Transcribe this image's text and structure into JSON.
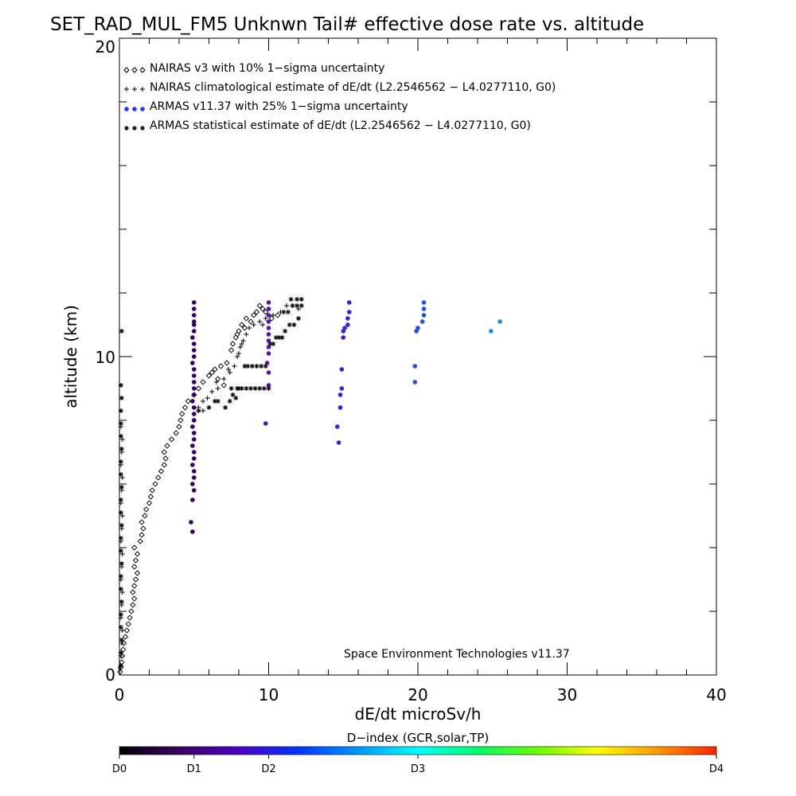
{
  "chart_data": {
    "type": "scatter",
    "title": "SET_RAD_MUL_FM5 Unknwn Tail#  effective dose rate vs. altitude",
    "xlabel": "dE/dt microSv/h",
    "ylabel": "altitude (km)",
    "xlim": [
      0,
      40
    ],
    "ylim": [
      0,
      20
    ],
    "x_ticks": [
      "0",
      "10",
      "20",
      "30",
      "40"
    ],
    "y_ticks": [
      "0",
      "10",
      "20"
    ],
    "legend_position": "top-left",
    "annotation": "Space Environment Technologies v11.37",
    "colorbar": {
      "title": "D−index (GCR,solar,TP)",
      "labels": [
        "D0",
        "D1",
        "D2",
        "D3",
        "D4"
      ],
      "label_positions": [
        0,
        0.125,
        0.25,
        0.5,
        1.0
      ],
      "colors": [
        "#000000",
        "#3a0060",
        "#4b00c8",
        "#0033ff",
        "#0099ff",
        "#00ffff",
        "#00ff66",
        "#66ff00",
        "#ffff00",
        "#ff9900",
        "#ff2200"
      ]
    },
    "series": [
      {
        "name": "NAIRAS v3 with 10% 1−sigma uncertainty",
        "marker": "diamond",
        "color": "#000000",
        "points": [
          [
            0.05,
            0.1
          ],
          [
            0.1,
            0.25
          ],
          [
            0.15,
            0.4
          ],
          [
            0.2,
            0.6
          ],
          [
            0.25,
            0.8
          ],
          [
            0.3,
            1.0
          ],
          [
            0.4,
            1.2
          ],
          [
            0.5,
            1.4
          ],
          [
            0.6,
            1.6
          ],
          [
            0.7,
            1.8
          ],
          [
            0.8,
            2.0
          ],
          [
            0.9,
            2.2
          ],
          [
            1.0,
            2.4
          ],
          [
            0.9,
            2.6
          ],
          [
            1.0,
            2.8
          ],
          [
            1.1,
            3.0
          ],
          [
            1.2,
            3.2
          ],
          [
            1.0,
            3.4
          ],
          [
            1.1,
            3.6
          ],
          [
            1.2,
            3.8
          ],
          [
            1.0,
            4.0
          ],
          [
            1.4,
            4.2
          ],
          [
            1.5,
            4.4
          ],
          [
            1.6,
            4.6
          ],
          [
            1.5,
            4.8
          ],
          [
            1.7,
            5.0
          ],
          [
            1.8,
            5.2
          ],
          [
            2.0,
            5.4
          ],
          [
            2.1,
            5.6
          ],
          [
            2.2,
            5.8
          ],
          [
            2.4,
            6.0
          ],
          [
            2.6,
            6.2
          ],
          [
            2.8,
            6.4
          ],
          [
            3.0,
            6.6
          ],
          [
            3.1,
            6.8
          ],
          [
            3.0,
            7.0
          ],
          [
            3.2,
            7.2
          ],
          [
            3.5,
            7.4
          ],
          [
            3.8,
            7.6
          ],
          [
            4.0,
            7.8
          ],
          [
            4.1,
            8.0
          ],
          [
            4.2,
            8.2
          ],
          [
            4.4,
            8.4
          ],
          [
            4.6,
            8.6
          ],
          [
            5.0,
            8.8
          ],
          [
            5.3,
            9.0
          ],
          [
            5.6,
            9.2
          ],
          [
            6.0,
            9.4
          ],
          [
            6.4,
            9.6
          ],
          [
            6.8,
            9.7
          ],
          [
            6.2,
            9.5
          ],
          [
            6.6,
            9.3
          ],
          [
            7.0,
            9.1
          ],
          [
            7.2,
            9.8
          ],
          [
            7.5,
            10.2
          ],
          [
            7.6,
            10.4
          ],
          [
            7.8,
            10.6
          ],
          [
            8.0,
            10.8
          ],
          [
            8.2,
            11.0
          ],
          [
            8.5,
            11.2
          ],
          [
            8.8,
            11.1
          ],
          [
            9.0,
            11.3
          ],
          [
            9.2,
            11.4
          ],
          [
            9.4,
            11.6
          ],
          [
            9.6,
            11.5
          ],
          [
            9.8,
            11.4
          ],
          [
            10.2,
            11.2
          ],
          [
            10.6,
            11.3
          ],
          [
            8.4,
            10.9
          ],
          [
            7.9,
            10.7
          ]
        ]
      },
      {
        "name": "NAIRAS climatological estimate of dE/dt (L2.2546562 − L4.0277110, G0)",
        "marker": "plus",
        "color": "#000000",
        "points": [
          [
            0.05,
            0.2
          ],
          [
            0.1,
            0.6
          ],
          [
            0.15,
            1.0
          ],
          [
            0.2,
            1.4
          ],
          [
            0.1,
            1.8
          ],
          [
            0.15,
            2.2
          ],
          [
            0.2,
            2.6
          ],
          [
            0.1,
            3.0
          ],
          [
            0.15,
            3.4
          ],
          [
            0.2,
            3.8
          ],
          [
            0.1,
            4.2
          ],
          [
            0.15,
            4.6
          ],
          [
            0.2,
            5.0
          ],
          [
            0.1,
            5.4
          ],
          [
            0.15,
            5.8
          ],
          [
            0.2,
            6.2
          ],
          [
            0.1,
            6.6
          ],
          [
            0.15,
            7.0
          ],
          [
            0.2,
            7.4
          ],
          [
            0.1,
            7.8
          ],
          [
            5.0,
            8.0
          ],
          [
            5.3,
            8.4
          ],
          [
            5.6,
            8.6
          ],
          [
            5.9,
            8.7
          ],
          [
            6.2,
            8.9
          ],
          [
            6.6,
            9.0
          ],
          [
            7.0,
            9.3
          ],
          [
            7.4,
            9.5
          ],
          [
            7.7,
            9.7
          ],
          [
            7.9,
            10.0
          ],
          [
            8.1,
            10.3
          ],
          [
            8.3,
            10.5
          ],
          [
            8.5,
            10.7
          ],
          [
            8.7,
            10.9
          ],
          [
            9.0,
            11.0
          ],
          [
            9.4,
            11.1
          ],
          [
            9.8,
            11.2
          ],
          [
            10.3,
            11.3
          ],
          [
            10.8,
            11.4
          ],
          [
            11.2,
            11.6
          ],
          [
            11.6,
            11.6
          ],
          [
            12.0,
            11.5
          ],
          [
            5.6,
            8.3
          ],
          [
            6.5,
            9.2
          ],
          [
            7.3,
            9.6
          ],
          [
            8.0,
            10.1
          ],
          [
            8.2,
            10.4
          ],
          [
            9.6,
            11.0
          ]
        ]
      },
      {
        "name": "ARMAS v11.37 with 25% 1−sigma uncertainty",
        "marker": "dot",
        "color": "#1e3cff",
        "points": [
          [
            4.9,
            4.5
          ],
          [
            4.8,
            4.8
          ],
          [
            4.9,
            5.5
          ],
          [
            5.0,
            5.8
          ],
          [
            4.9,
            6.0
          ],
          [
            5.0,
            6.2
          ],
          [
            5.0,
            6.4
          ],
          [
            4.9,
            6.6
          ],
          [
            5.0,
            6.8
          ],
          [
            5.0,
            7.0
          ],
          [
            4.9,
            7.2
          ],
          [
            5.0,
            7.4
          ],
          [
            5.0,
            7.6
          ],
          [
            4.9,
            7.8
          ],
          [
            5.0,
            8.0
          ],
          [
            5.0,
            8.2
          ],
          [
            5.0,
            8.4
          ],
          [
            4.9,
            8.6
          ],
          [
            5.0,
            8.8
          ],
          [
            5.0,
            9.0
          ],
          [
            5.0,
            9.2
          ],
          [
            5.0,
            9.4
          ],
          [
            5.0,
            9.6
          ],
          [
            4.9,
            9.8
          ],
          [
            5.0,
            10.0
          ],
          [
            5.0,
            10.2
          ],
          [
            5.0,
            10.4
          ],
          [
            4.9,
            10.6
          ],
          [
            5.0,
            10.8
          ],
          [
            5.0,
            11.0
          ],
          [
            5.0,
            11.1
          ],
          [
            5.0,
            11.3
          ],
          [
            5.0,
            11.5
          ],
          [
            5.0,
            11.7
          ],
          [
            9.8,
            7.9
          ],
          [
            10.0,
            9.1
          ],
          [
            10.0,
            9.5
          ],
          [
            9.9,
            9.8
          ],
          [
            10.0,
            10.1
          ],
          [
            10.0,
            10.3
          ],
          [
            10.0,
            10.5
          ],
          [
            10.0,
            10.7
          ],
          [
            10.0,
            10.9
          ],
          [
            10.0,
            11.1
          ],
          [
            10.0,
            11.3
          ],
          [
            10.0,
            11.5
          ],
          [
            10.0,
            11.7
          ],
          [
            14.7,
            7.3
          ],
          [
            14.6,
            7.8
          ],
          [
            14.8,
            8.4
          ],
          [
            14.8,
            8.8
          ],
          [
            14.9,
            9.0
          ],
          [
            14.9,
            9.6
          ],
          [
            15.0,
            10.6
          ],
          [
            15.0,
            10.8
          ],
          [
            15.1,
            10.9
          ],
          [
            15.3,
            11.0
          ],
          [
            15.3,
            11.2
          ],
          [
            15.4,
            11.4
          ],
          [
            15.4,
            11.7
          ],
          [
            19.8,
            9.2
          ],
          [
            19.8,
            9.7
          ],
          [
            19.9,
            10.8
          ],
          [
            20.0,
            10.9
          ],
          [
            20.3,
            11.1
          ],
          [
            20.4,
            11.3
          ],
          [
            20.4,
            11.5
          ],
          [
            20.4,
            11.7
          ],
          [
            24.9,
            10.8
          ],
          [
            25.5,
            11.1
          ]
        ]
      },
      {
        "name": "ARMAS statistical estimate of dE/dt (L2.2546562 − L4.0277110, G0)",
        "marker": "asterisk",
        "color": "#000000",
        "points": [
          [
            0.1,
            0.3
          ],
          [
            0.1,
            0.7
          ],
          [
            0.15,
            1.1
          ],
          [
            0.1,
            1.5
          ],
          [
            0.1,
            1.9
          ],
          [
            0.15,
            2.3
          ],
          [
            0.1,
            2.7
          ],
          [
            0.1,
            3.1
          ],
          [
            0.15,
            3.5
          ],
          [
            0.1,
            3.9
          ],
          [
            0.1,
            4.3
          ],
          [
            0.15,
            4.7
          ],
          [
            0.1,
            5.1
          ],
          [
            0.1,
            5.5
          ],
          [
            0.15,
            5.9
          ],
          [
            0.1,
            6.3
          ],
          [
            0.1,
            6.7
          ],
          [
            0.15,
            7.1
          ],
          [
            0.1,
            7.5
          ],
          [
            0.1,
            7.9
          ],
          [
            0.1,
            8.3
          ],
          [
            0.15,
            8.7
          ],
          [
            0.1,
            9.1
          ],
          [
            0.15,
            10.8
          ],
          [
            5.3,
            8.3
          ],
          [
            6.0,
            8.4
          ],
          [
            6.4,
            8.6
          ],
          [
            6.6,
            8.6
          ],
          [
            7.1,
            8.4
          ],
          [
            7.4,
            8.6
          ],
          [
            7.6,
            8.8
          ],
          [
            7.8,
            8.7
          ],
          [
            8.0,
            9.0
          ],
          [
            7.5,
            9.0
          ],
          [
            7.9,
            9.0
          ],
          [
            8.2,
            9.0
          ],
          [
            8.5,
            9.0
          ],
          [
            8.8,
            9.0
          ],
          [
            9.1,
            9.0
          ],
          [
            9.4,
            9.0
          ],
          [
            9.7,
            9.0
          ],
          [
            10.0,
            9.0
          ],
          [
            8.4,
            9.7
          ],
          [
            8.6,
            9.7
          ],
          [
            8.9,
            9.7
          ],
          [
            9.2,
            9.7
          ],
          [
            9.5,
            9.7
          ],
          [
            9.8,
            9.7
          ],
          [
            10.1,
            10.4
          ],
          [
            10.3,
            10.4
          ],
          [
            10.5,
            10.6
          ],
          [
            10.7,
            10.6
          ],
          [
            10.9,
            10.6
          ],
          [
            11.1,
            10.8
          ],
          [
            11.4,
            11.0
          ],
          [
            11.7,
            11.0
          ],
          [
            12.0,
            11.2
          ],
          [
            11.0,
            11.4
          ],
          [
            11.3,
            11.4
          ],
          [
            11.6,
            11.6
          ],
          [
            11.9,
            11.6
          ],
          [
            12.2,
            11.6
          ],
          [
            11.5,
            11.8
          ],
          [
            11.9,
            11.8
          ],
          [
            12.2,
            11.8
          ]
        ]
      }
    ]
  }
}
